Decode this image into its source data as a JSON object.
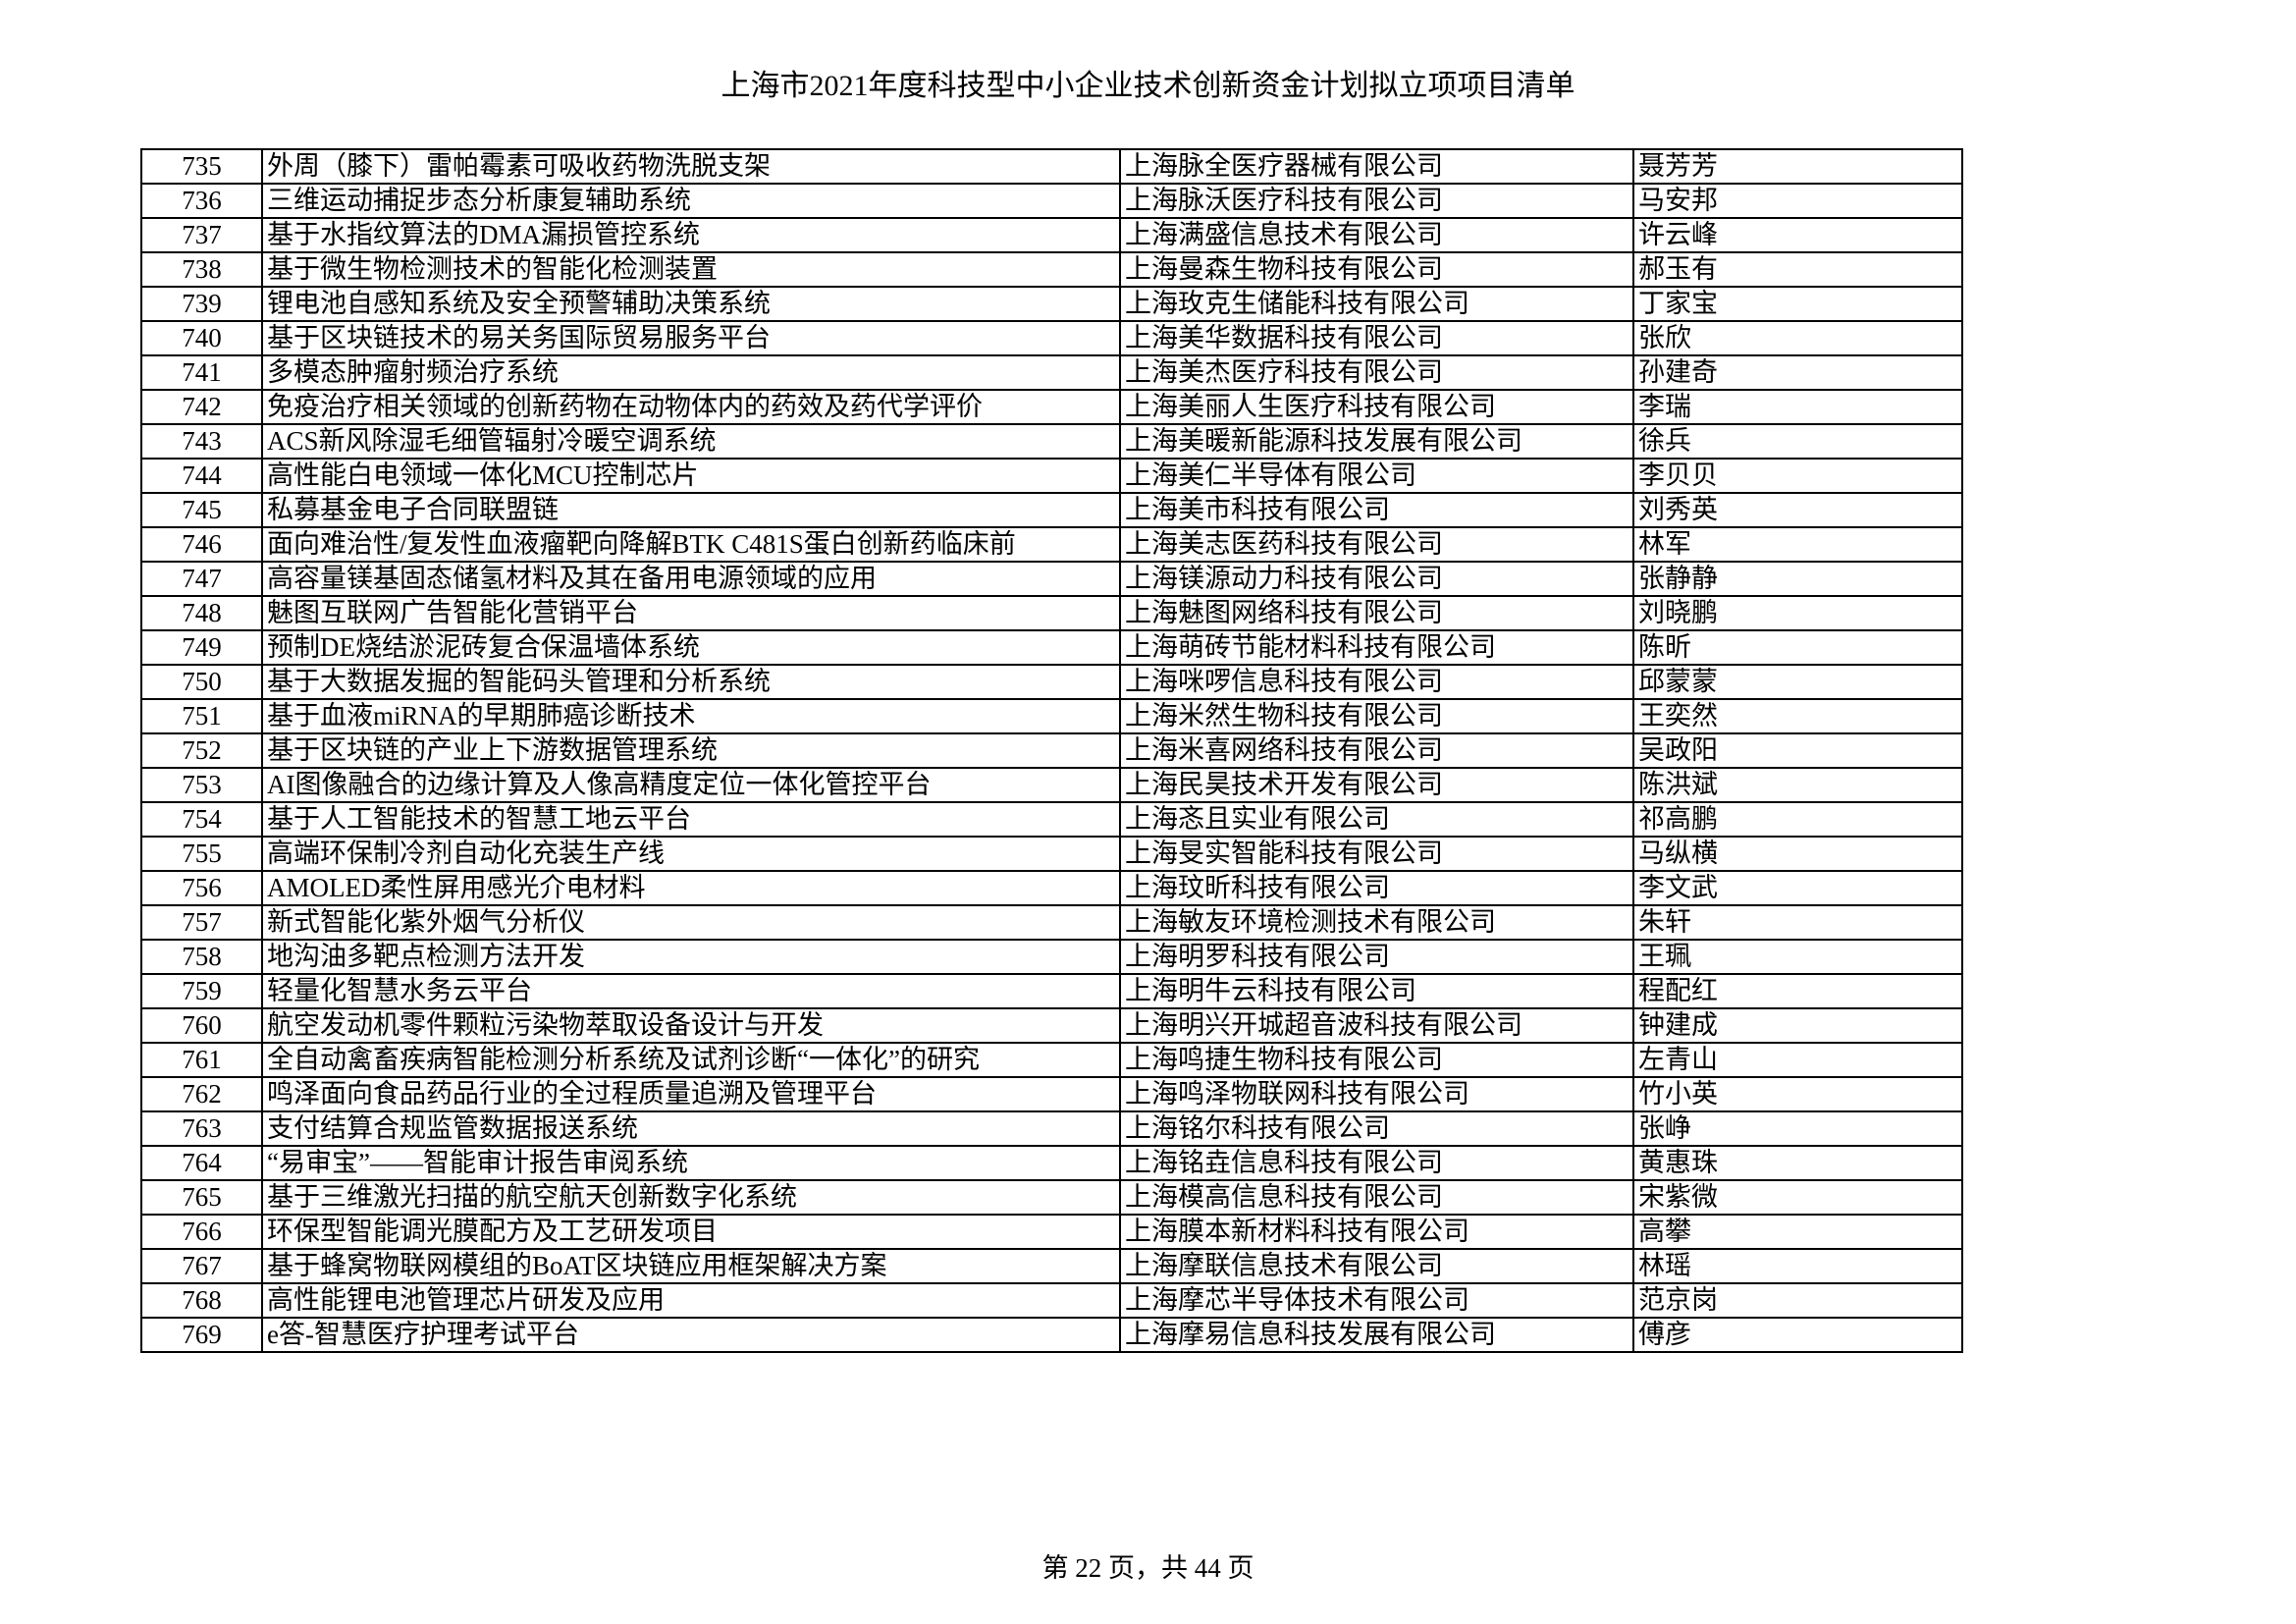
{
  "title": "上海市2021年度科技型中小企业技术创新资金计划拟立项项目清单",
  "rows": [
    {
      "no": "735",
      "project": "外周（膝下）雷帕霉素可吸收药物洗脱支架",
      "company": "上海脉全医疗器械有限公司",
      "person": "聂芳芳"
    },
    {
      "no": "736",
      "project": "三维运动捕捉步态分析康复辅助系统",
      "company": "上海脉沃医疗科技有限公司",
      "person": "马安邦"
    },
    {
      "no": "737",
      "project": "基于水指纹算法的DMA漏损管控系统",
      "company": "上海满盛信息技术有限公司",
      "person": "许云峰"
    },
    {
      "no": "738",
      "project": "基于微生物检测技术的智能化检测装置",
      "company": "上海曼森生物科技有限公司",
      "person": "郝玉有"
    },
    {
      "no": "739",
      "project": "锂电池自感知系统及安全预警辅助决策系统",
      "company": "上海玫克生储能科技有限公司",
      "person": "丁家宝"
    },
    {
      "no": "740",
      "project": "基于区块链技术的易关务国际贸易服务平台",
      "company": "上海美华数据科技有限公司",
      "person": "张欣"
    },
    {
      "no": "741",
      "project": "多模态肿瘤射频治疗系统",
      "company": "上海美杰医疗科技有限公司",
      "person": "孙建奇"
    },
    {
      "no": "742",
      "project": "免疫治疗相关领域的创新药物在动物体内的药效及药代学评价",
      "company": "上海美丽人生医疗科技有限公司",
      "person": "李瑞"
    },
    {
      "no": "743",
      "project": "ACS新风除湿毛细管辐射冷暖空调系统",
      "company": "上海美暖新能源科技发展有限公司",
      "person": "徐兵"
    },
    {
      "no": "744",
      "project": "高性能白电领域一体化MCU控制芯片",
      "company": "上海美仁半导体有限公司",
      "person": "李贝贝"
    },
    {
      "no": "745",
      "project": "私募基金电子合同联盟链",
      "company": "上海美市科技有限公司",
      "person": "刘秀英"
    },
    {
      "no": "746",
      "project": "面向难治性/复发性血液瘤靶向降解BTK C481S蛋白创新药临床前",
      "company": "上海美志医药科技有限公司",
      "person": "林军"
    },
    {
      "no": "747",
      "project": "高容量镁基固态储氢材料及其在备用电源领域的应用",
      "company": "上海镁源动力科技有限公司",
      "person": "张静静"
    },
    {
      "no": "748",
      "project": "魅图互联网广告智能化营销平台",
      "company": "上海魅图网络科技有限公司",
      "person": "刘晓鹏"
    },
    {
      "no": "749",
      "project": "预制DE烧结淤泥砖复合保温墙体系统",
      "company": "上海萌砖节能材料科技有限公司",
      "person": "陈昕"
    },
    {
      "no": "750",
      "project": "基于大数据发掘的智能码头管理和分析系统",
      "company": "上海咪啰信息科技有限公司",
      "person": "邱蒙蒙"
    },
    {
      "no": "751",
      "project": "基于血液miRNA的早期肺癌诊断技术",
      "company": "上海米然生物科技有限公司",
      "person": "王奕然"
    },
    {
      "no": "752",
      "project": "基于区块链的产业上下游数据管理系统",
      "company": "上海米喜网络科技有限公司",
      "person": "吴政阳"
    },
    {
      "no": "753",
      "project": "AI图像融合的边缘计算及人像高精度定位一体化管控平台",
      "company": "上海民昊技术开发有限公司",
      "person": "陈洪斌"
    },
    {
      "no": "754",
      "project": "基于人工智能技术的智慧工地云平台",
      "company": "上海忞且实业有限公司",
      "person": "祁高鹏"
    },
    {
      "no": "755",
      "project": "高端环保制冷剂自动化充装生产线",
      "company": "上海旻实智能科技有限公司",
      "person": "马纵横"
    },
    {
      "no": "756",
      "project": "AMOLED柔性屏用感光介电材料",
      "company": "上海玟昕科技有限公司",
      "person": "李文武"
    },
    {
      "no": "757",
      "project": "新式智能化紫外烟气分析仪",
      "company": "上海敏友环境检测技术有限公司",
      "person": "朱轩"
    },
    {
      "no": "758",
      "project": "地沟油多靶点检测方法开发",
      "company": "上海明罗科技有限公司",
      "person": "王珮"
    },
    {
      "no": "759",
      "project": "轻量化智慧水务云平台",
      "company": "上海明牛云科技有限公司",
      "person": "程配红"
    },
    {
      "no": "760",
      "project": "航空发动机零件颗粒污染物萃取设备设计与开发",
      "company": "上海明兴开城超音波科技有限公司",
      "person": "钟建成"
    },
    {
      "no": "761",
      "project": "全自动禽畜疾病智能检测分析系统及试剂诊断“一体化”的研究",
      "company": "上海鸣捷生物科技有限公司",
      "person": "左青山"
    },
    {
      "no": "762",
      "project": "鸣泽面向食品药品行业的全过程质量追溯及管理平台",
      "company": "上海鸣泽物联网科技有限公司",
      "person": "竹小英"
    },
    {
      "no": "763",
      "project": "支付结算合规监管数据报送系统",
      "company": "上海铭尔科技有限公司",
      "person": "张峥"
    },
    {
      "no": "764",
      "project": "“易审宝”——智能审计报告审阅系统",
      "company": "上海铭垚信息科技有限公司",
      "person": "黄惠珠"
    },
    {
      "no": "765",
      "project": "基于三维激光扫描的航空航天创新数字化系统",
      "company": "上海模高信息科技有限公司",
      "person": "宋紫微"
    },
    {
      "no": "766",
      "project": "环保型智能调光膜配方及工艺研发项目",
      "company": "上海膜本新材料科技有限公司",
      "person": "高攀"
    },
    {
      "no": "767",
      "project": "基于蜂窝物联网模组的BoAT区块链应用框架解决方案",
      "company": "上海摩联信息技术有限公司",
      "person": "林瑶"
    },
    {
      "no": "768",
      "project": "高性能锂电池管理芯片研发及应用",
      "company": "上海摩芯半导体技术有限公司",
      "person": "范京岗"
    },
    {
      "no": "769",
      "project": "e答-智慧医疗护理考试平台",
      "company": "上海摩易信息科技发展有限公司",
      "person": "傅彦"
    }
  ],
  "footer": "第 22 页，共 44 页"
}
